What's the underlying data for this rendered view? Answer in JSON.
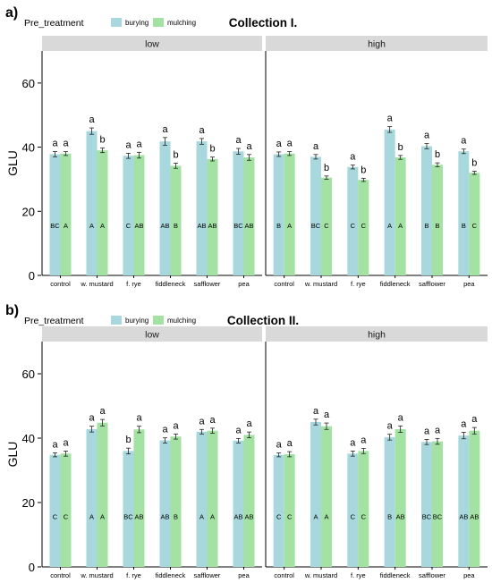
{
  "legend": {
    "title": "Pre_treatment",
    "items": [
      {
        "name": "burying",
        "color": "#a8d8de"
      },
      {
        "name": "mulching",
        "color": "#a3e2a3"
      }
    ]
  },
  "colors": {
    "burying": "#a8d8de",
    "mulching": "#a3e2a3",
    "strip": "#d9d9d9",
    "axis": "#000000"
  },
  "chart_data": [
    {
      "type": "bar",
      "panel_label": "a)",
      "title": "Collection I.",
      "ylabel": "GLU",
      "ylim": [
        0,
        70
      ],
      "yticks": [
        0,
        20,
        40,
        60
      ],
      "categories": [
        "control",
        "w. mustard",
        "f. rye",
        "fiddleneck",
        "safflower",
        "pea"
      ],
      "facets": [
        {
          "name": "low",
          "series": [
            {
              "name": "burying",
              "values": [
                37.8,
                45.0,
                37.3,
                41.8,
                41.8,
                38.7
              ],
              "errors": [
                0.8,
                1.0,
                0.8,
                1.2,
                0.9,
                0.9
              ],
              "letters_top": [
                "a",
                "a",
                "a",
                "a",
                "a",
                "a"
              ],
              "letters_bottom": [
                "BC",
                "A",
                "C",
                "AB",
                "AB",
                "BC"
              ]
            },
            {
              "name": "mulching",
              "values": [
                38.0,
                39.0,
                37.5,
                34.2,
                36.3,
                36.8
              ],
              "errors": [
                0.6,
                0.7,
                0.9,
                0.8,
                0.6,
                0.9
              ],
              "letters_top": [
                "a",
                "b",
                "a",
                "b",
                "b",
                "a"
              ],
              "letters_bottom": [
                "A",
                "A",
                "AB",
                "B",
                "AB",
                "AB"
              ]
            }
          ]
        },
        {
          "name": "high",
          "series": [
            {
              "name": "burying",
              "values": [
                37.8,
                37.0,
                33.8,
                45.5,
                40.3,
                38.7
              ],
              "errors": [
                0.7,
                0.7,
                0.6,
                0.9,
                0.8,
                0.7
              ],
              "letters_top": [
                "a",
                "a",
                "a",
                "a",
                "a",
                "a"
              ],
              "letters_bottom": [
                "B",
                "BC",
                "C",
                "A",
                "B",
                "B"
              ]
            },
            {
              "name": "mulching",
              "values": [
                38.0,
                30.5,
                29.8,
                36.8,
                34.5,
                32.0
              ],
              "errors": [
                0.6,
                0.5,
                0.5,
                0.6,
                0.6,
                0.5
              ],
              "letters_top": [
                "a",
                "b",
                "b",
                "b",
                "b",
                "b"
              ],
              "letters_bottom": [
                "A",
                "C",
                "C",
                "A",
                "B",
                "C"
              ]
            }
          ]
        }
      ]
    },
    {
      "type": "bar",
      "panel_label": "b)",
      "title": "Collection II.",
      "ylabel": "GLU",
      "ylim": [
        0,
        70
      ],
      "yticks": [
        0,
        20,
        40,
        60
      ],
      "categories": [
        "control",
        "w. mustard",
        "f. rye",
        "fiddleneck",
        "safflower",
        "pea"
      ],
      "facets": [
        {
          "name": "low",
          "series": [
            {
              "name": "burying",
              "values": [
                34.8,
                42.8,
                36.0,
                39.3,
                42.0,
                39.2
              ],
              "errors": [
                0.6,
                0.9,
                0.9,
                0.8,
                0.7,
                0.7
              ],
              "letters_top": [
                "a",
                "a",
                "b",
                "a",
                "a",
                "a"
              ],
              "letters_bottom": [
                "C",
                "A",
                "BC",
                "AB",
                "A",
                "AB"
              ]
            },
            {
              "name": "mulching",
              "values": [
                35.2,
                44.8,
                42.7,
                40.5,
                42.3,
                41.0
              ],
              "errors": [
                0.8,
                1.0,
                1.0,
                0.8,
                0.8,
                0.9
              ],
              "letters_top": [
                "a",
                "a",
                "a",
                "a",
                "a",
                "a"
              ],
              "letters_bottom": [
                "C",
                "A",
                "AB",
                "B",
                "A",
                "AB"
              ]
            }
          ]
        },
        {
          "name": "high",
          "series": [
            {
              "name": "burying",
              "values": [
                34.8,
                45.0,
                35.2,
                40.3,
                38.8,
                40.8
              ],
              "errors": [
                0.6,
                0.9,
                0.8,
                0.9,
                0.8,
                1.0
              ],
              "letters_top": [
                "a",
                "a",
                "a",
                "a",
                "a",
                "a"
              ],
              "letters_bottom": [
                "C",
                "A",
                "C",
                "B",
                "BC",
                "AB"
              ]
            },
            {
              "name": "mulching",
              "values": [
                35.0,
                43.7,
                36.0,
                42.8,
                39.0,
                42.3
              ],
              "errors": [
                0.8,
                1.0,
                0.8,
                1.0,
                0.9,
                1.0
              ],
              "letters_top": [
                "a",
                "a",
                "a",
                "a",
                "a",
                "a"
              ],
              "letters_bottom": [
                "C",
                "A",
                "C",
                "AB",
                "BC",
                "AB"
              ]
            }
          ]
        }
      ]
    }
  ]
}
